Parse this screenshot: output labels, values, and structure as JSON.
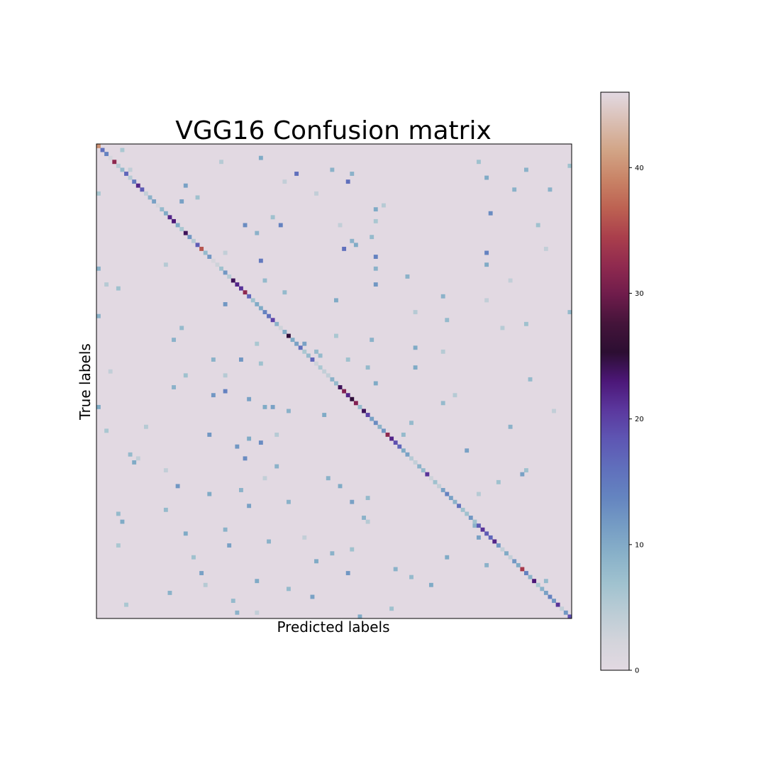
{
  "chart_data": {
    "type": "heatmap",
    "title": "VGG16 Confusion matrix",
    "xlabel": "Predicted labels",
    "ylabel": "True labels",
    "n_classes": 120,
    "colormap": "twilight",
    "value_range": [
      0,
      46
    ],
    "colorbar": {
      "ticks": [
        0,
        10,
        20,
        30,
        40
      ],
      "tick_labels": [
        "0",
        "10",
        "20",
        "30",
        "40"
      ]
    },
    "x_tick_labels": [],
    "y_tick_labels": [],
    "diagonal": [
      40,
      16,
      14,
      2,
      32,
      5,
      8,
      17,
      5,
      15,
      22,
      18,
      4,
      9,
      11,
      2,
      8,
      10,
      22,
      23,
      10,
      6,
      24,
      12,
      5,
      18,
      36,
      8,
      12,
      2,
      3,
      7,
      12,
      5,
      24,
      22,
      21,
      32,
      17,
      7,
      10,
      10,
      14,
      16,
      20,
      9,
      3,
      10,
      25,
      10,
      11,
      16,
      6,
      8,
      17,
      3,
      6,
      4,
      4,
      9,
      8,
      24,
      31,
      22,
      25,
      31,
      8,
      24,
      20,
      11,
      13,
      9,
      12,
      32,
      22,
      19,
      17,
      10,
      11,
      5,
      4,
      9,
      8,
      21,
      3,
      7,
      4,
      11,
      14,
      11,
      9,
      16,
      7,
      7,
      12,
      7,
      18,
      21,
      18,
      17,
      22,
      12,
      4,
      10,
      4,
      12,
      10,
      34,
      14,
      9,
      23,
      6,
      9,
      11,
      14,
      12,
      21,
      4,
      12,
      19
    ],
    "off_diagonal_nonzero": [
      [
        1,
        6,
        6
      ],
      [
        3,
        41,
        10
      ],
      [
        4,
        96,
        7
      ],
      [
        5,
        119,
        7
      ],
      [
        6,
        59,
        9
      ],
      [
        6,
        108,
        9
      ],
      [
        7,
        50,
        16
      ],
      [
        7,
        64,
        9
      ],
      [
        8,
        98,
        10
      ],
      [
        9,
        63,
        16
      ],
      [
        10,
        22,
        11
      ],
      [
        11,
        105,
        9
      ],
      [
        11,
        114,
        9
      ],
      [
        12,
        0,
        6
      ],
      [
        13,
        25,
        7
      ],
      [
        14,
        21,
        11
      ],
      [
        16,
        70,
        10
      ],
      [
        17,
        99,
        13
      ],
      [
        18,
        44,
        7
      ],
      [
        19,
        70,
        6
      ],
      [
        20,
        37,
        13
      ],
      [
        20,
        46,
        14
      ],
      [
        20,
        111,
        7
      ],
      [
        22,
        40,
        9
      ],
      [
        23,
        69,
        8
      ],
      [
        24,
        64,
        9
      ],
      [
        25,
        65,
        10
      ],
      [
        26,
        62,
        16
      ],
      [
        27,
        98,
        14
      ],
      [
        28,
        70,
        14
      ],
      [
        29,
        41,
        15
      ],
      [
        30,
        98,
        10
      ],
      [
        31,
        0,
        9
      ],
      [
        31,
        70,
        9
      ],
      [
        33,
        78,
        9
      ],
      [
        34,
        42,
        8
      ],
      [
        35,
        70,
        12
      ],
      [
        36,
        5,
        7
      ],
      [
        37,
        47,
        8
      ],
      [
        38,
        87,
        9
      ],
      [
        39,
        60,
        10
      ],
      [
        40,
        32,
        12
      ],
      [
        42,
        119,
        8
      ],
      [
        43,
        0,
        9
      ],
      [
        44,
        88,
        8
      ],
      [
        45,
        108,
        7
      ],
      [
        46,
        21,
        8
      ],
      [
        48,
        60,
        6
      ],
      [
        49,
        19,
        9
      ],
      [
        49,
        69,
        9
      ],
      [
        50,
        40,
        6
      ],
      [
        50,
        52,
        11
      ],
      [
        51,
        80,
        10
      ],
      [
        52,
        55,
        8
      ],
      [
        53,
        56,
        8
      ],
      [
        54,
        29,
        9
      ],
      [
        54,
        36,
        12
      ],
      [
        54,
        63,
        7
      ],
      [
        55,
        41,
        7
      ],
      [
        56,
        68,
        8
      ],
      [
        56,
        80,
        10
      ],
      [
        58,
        22,
        7
      ],
      [
        59,
        109,
        8
      ],
      [
        60,
        70,
        10
      ],
      [
        61,
        19,
        9
      ],
      [
        62,
        32,
        14
      ],
      [
        63,
        29,
        12
      ],
      [
        64,
        38,
        11
      ],
      [
        65,
        87,
        8
      ],
      [
        66,
        0,
        10
      ],
      [
        66,
        42,
        10
      ],
      [
        66,
        44,
        11
      ],
      [
        67,
        48,
        9
      ],
      [
        68,
        57,
        10
      ],
      [
        68,
        68,
        9
      ],
      [
        70,
        79,
        8
      ],
      [
        71,
        104,
        9
      ],
      [
        72,
        2,
        6
      ],
      [
        73,
        28,
        12
      ],
      [
        73,
        77,
        8
      ],
      [
        74,
        38,
        10
      ],
      [
        75,
        41,
        13
      ],
      [
        76,
        35,
        12
      ],
      [
        77,
        93,
        11
      ],
      [
        78,
        8,
        8
      ],
      [
        79,
        37,
        13
      ],
      [
        80,
        9,
        10
      ],
      [
        81,
        45,
        9
      ],
      [
        82,
        108,
        7
      ],
      [
        83,
        107,
        11
      ],
      [
        84,
        58,
        9
      ],
      [
        85,
        101,
        7
      ],
      [
        86,
        20,
        12
      ],
      [
        86,
        61,
        10
      ],
      [
        87,
        36,
        9
      ],
      [
        88,
        28,
        10
      ],
      [
        89,
        68,
        8
      ],
      [
        90,
        48,
        9
      ],
      [
        90,
        64,
        11
      ],
      [
        91,
        38,
        11
      ],
      [
        92,
        17,
        8
      ],
      [
        93,
        5,
        8
      ],
      [
        94,
        67,
        9
      ],
      [
        95,
        6,
        10
      ],
      [
        96,
        95,
        9
      ],
      [
        97,
        32,
        9
      ],
      [
        98,
        22,
        10
      ],
      [
        99,
        96,
        11
      ],
      [
        100,
        43,
        9
      ],
      [
        101,
        33,
        11
      ],
      [
        102,
        64,
        7
      ],
      [
        103,
        59,
        9
      ],
      [
        104,
        24,
        7
      ],
      [
        104,
        88,
        10
      ],
      [
        105,
        55,
        10
      ],
      [
        106,
        98,
        9
      ],
      [
        107,
        75,
        9
      ],
      [
        108,
        26,
        11
      ],
      [
        108,
        63,
        12
      ],
      [
        109,
        79,
        8
      ],
      [
        110,
        40,
        10
      ],
      [
        110,
        113,
        8
      ],
      [
        111,
        84,
        10
      ],
      [
        112,
        48,
        8
      ],
      [
        113,
        18,
        9
      ],
      [
        114,
        54,
        11
      ],
      [
        115,
        34,
        8
      ],
      [
        116,
        7,
        6
      ],
      [
        117,
        74,
        7
      ],
      [
        118,
        35,
        9
      ],
      [
        119,
        66,
        10
      ],
      [
        42,
        80,
        5
      ],
      [
        12,
        55,
        4
      ],
      [
        88,
        96,
        5
      ],
      [
        34,
        104,
        4
      ],
      [
        71,
        12,
        5
      ],
      [
        57,
        3,
        4
      ],
      [
        101,
        5,
        6
      ],
      [
        27,
        32,
        4
      ],
      [
        63,
        90,
        5
      ],
      [
        9,
        47,
        4
      ],
      [
        46,
        102,
        5
      ],
      [
        79,
        10,
        4
      ],
      [
        15,
        72,
        5
      ],
      [
        99,
        52,
        4
      ],
      [
        30,
        17,
        5
      ],
      [
        67,
        115,
        4
      ],
      [
        4,
        31,
        5
      ],
      [
        84,
        42,
        4
      ],
      [
        52,
        87,
        5
      ],
      [
        20,
        61,
        4
      ],
      [
        111,
        27,
        5
      ],
      [
        39,
        98,
        4
      ],
      [
        73,
        45,
        5
      ],
      [
        6,
        8,
        4
      ],
      [
        95,
        68,
        5
      ],
      [
        26,
        113,
        4
      ],
      [
        58,
        32,
        5
      ],
      [
        118,
        40,
        4
      ],
      [
        35,
        2,
        5
      ],
      [
        82,
        17,
        4
      ]
    ]
  }
}
